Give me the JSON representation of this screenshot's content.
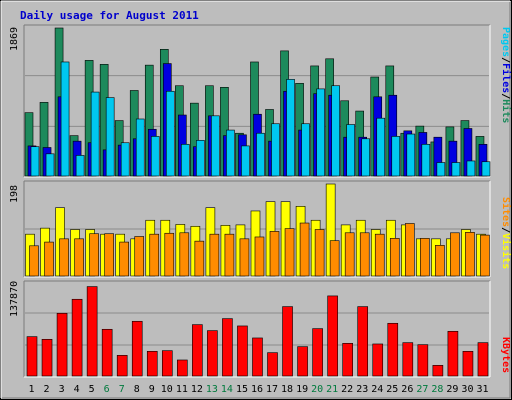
{
  "colors": {
    "background": "#bdbdbd",
    "title": "#0000cc",
    "hits": "#1d8a5c",
    "files": "#0000e0",
    "pages": "#00c8f0",
    "visits": "#ffff00",
    "sites": "#ff8c00",
    "kbytes": "#ff0000",
    "weekend_label": "#007a3d",
    "weekday_label": "#000000"
  },
  "chart_data": [
    {
      "type": "bar",
      "title": "Daily usage for August 2011",
      "y_tick_label": "1869",
      "ylim": [
        0,
        1869
      ],
      "categories": [
        "1",
        "2",
        "3",
        "4",
        "5",
        "6",
        "7",
        "8",
        "9",
        "10",
        "11",
        "12",
        "13",
        "14",
        "15",
        "16",
        "17",
        "18",
        "19",
        "20",
        "21",
        "22",
        "23",
        "24",
        "25",
        "26",
        "27",
        "28",
        "29",
        "30",
        "31"
      ],
      "weekend_days": [
        "6",
        "7",
        "13",
        "14",
        "20",
        "21",
        "27",
        "28"
      ],
      "series": [
        {
          "name": "Hits",
          "values": [
            800,
            930,
            1869,
            510,
            1460,
            1410,
            700,
            1080,
            1400,
            1600,
            1140,
            920,
            1140,
            1120,
            540,
            1440,
            840,
            1580,
            1170,
            1390,
            1480,
            950,
            820,
            1250,
            1390,
            540,
            630,
            430,
            620,
            700,
            500
          ]
        },
        {
          "name": "Files",
          "values": [
            380,
            360,
            1000,
            440,
            420,
            330,
            390,
            470,
            590,
            1420,
            770,
            370,
            760,
            510,
            520,
            780,
            440,
            1070,
            580,
            1040,
            1020,
            490,
            490,
            1000,
            1020,
            570,
            550,
            490,
            440,
            600,
            400
          ]
        },
        {
          "name": "Pages",
          "values": [
            370,
            280,
            1440,
            260,
            1060,
            990,
            420,
            720,
            500,
            1070,
            400,
            450,
            760,
            580,
            380,
            540,
            660,
            1220,
            660,
            1100,
            1140,
            650,
            470,
            730,
            500,
            530,
            400,
            170,
            170,
            190,
            180
          ]
        }
      ],
      "side_labels": [
        "Pages",
        "/",
        "Files",
        "/",
        "Hits"
      ],
      "grid": true
    },
    {
      "type": "bar",
      "y_tick_label": "198",
      "ylim": [
        0,
        198
      ],
      "series": [
        {
          "name": "Visits",
          "values": [
            90,
            103,
            147,
            100,
            100,
            90,
            90,
            80,
            120,
            120,
            111,
            107,
            147,
            109,
            110,
            140,
            160,
            160,
            150,
            120,
            198,
            110,
            120,
            100,
            120,
            110,
            80,
            80,
            80,
            100,
            90
          ]
        },
        {
          "name": "Sites",
          "values": [
            65,
            73,
            80,
            80,
            91,
            91,
            73,
            85,
            90,
            92,
            93,
            75,
            90,
            90,
            80,
            84,
            96,
            102,
            114,
            100,
            76,
            93,
            93,
            90,
            81,
            113,
            81,
            66,
            93,
            94,
            88
          ]
        }
      ],
      "side_labels": [
        "Sites",
        "/",
        "Visits"
      ],
      "grid": true
    },
    {
      "type": "bar",
      "y_tick_label": "137870",
      "ylim": [
        0,
        137870
      ],
      "series": [
        {
          "name": "KBytes",
          "values": [
            59000,
            55000,
            94000,
            115000,
            134000,
            70000,
            31000,
            82000,
            37000,
            38000,
            24000,
            77000,
            68000,
            86000,
            75000,
            57000,
            35000,
            104000,
            44000,
            71000,
            120000,
            49000,
            104000,
            48000,
            79000,
            50000,
            47000,
            16000,
            67000,
            37000,
            50000
          ]
        }
      ],
      "side_labels": [
        "KBytes"
      ],
      "grid": true
    }
  ]
}
